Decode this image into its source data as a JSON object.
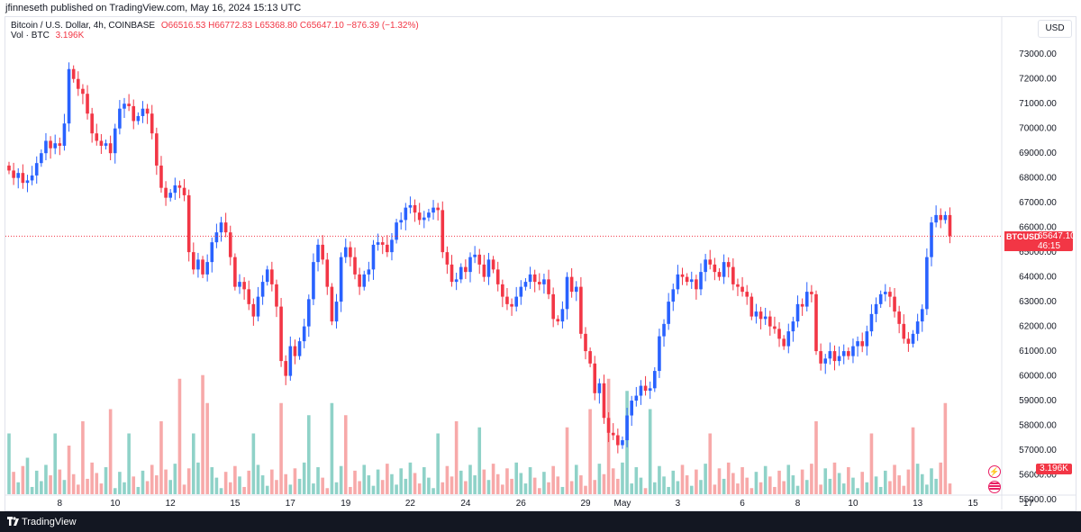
{
  "header": {
    "published": "jfinneseth published on TradingView.com, May 16, 2024 15:13 UTC"
  },
  "legend": {
    "symbol": "Bitcoin / U.S. Dollar, 4h, COINBASE",
    "open": "O66516.53",
    "high": "H66772.83",
    "low": "L65368.80",
    "close": "C65647.10",
    "change": "−876.39 (−1.32%)",
    "vol_label": "Vol · BTC",
    "vol_value": "3.196K"
  },
  "currency": "USD",
  "last_price": {
    "symbol": "BTCUSD",
    "price": "65647.10",
    "countdown": "46:15"
  },
  "volume_tag": "3.196K",
  "footer": {
    "brand": "TradingView"
  },
  "colors": {
    "up": "#2962ff",
    "down": "#f23645",
    "vol_up": "#8fd2c8",
    "vol_down": "#f7a9a9"
  },
  "chart_data": {
    "type": "candlestick",
    "interval": "4h",
    "y_ticks": [
      55000,
      56000,
      57000,
      58000,
      59000,
      60000,
      61000,
      62000,
      63000,
      64000,
      65000,
      66000,
      67000,
      68000,
      69000,
      70000,
      71000,
      72000,
      73000
    ],
    "y_range": [
      54600,
      74500
    ],
    "x_ticks": [
      {
        "label": "8",
        "i": 11
      },
      {
        "label": "10",
        "i": 23
      },
      {
        "label": "12",
        "i": 35
      },
      {
        "label": "15",
        "i": 49
      },
      {
        "label": "17",
        "i": 61
      },
      {
        "label": "19",
        "i": 73
      },
      {
        "label": "22",
        "i": 87
      },
      {
        "label": "24",
        "i": 99
      },
      {
        "label": "26",
        "i": 111
      },
      {
        "label": "29",
        "i": 125
      },
      {
        "label": "May",
        "i": 133
      },
      {
        "label": "3",
        "i": 145
      },
      {
        "label": "6",
        "i": 159
      },
      {
        "label": "8",
        "i": 171
      },
      {
        "label": "10",
        "i": 183
      },
      {
        "label": "13",
        "i": 197
      },
      {
        "label": "15",
        "i": 209
      },
      {
        "label": "17",
        "i": 221
      }
    ],
    "last_price": 65647.1,
    "closes": [
      68300,
      68000,
      68200,
      67800,
      67900,
      68100,
      68600,
      69000,
      69500,
      69200,
      69400,
      69300,
      70200,
      72400,
      72000,
      71600,
      71400,
      70600,
      69800,
      69500,
      69300,
      69400,
      69000,
      70000,
      70800,
      71000,
      70900,
      70300,
      70500,
      70800,
      70600,
      69800,
      68500,
      67600,
      67200,
      67400,
      67700,
      67600,
      67300,
      65000,
      64300,
      64700,
      64100,
      64600,
      65400,
      65800,
      66200,
      65800,
      64800,
      63600,
      63800,
      63500,
      62900,
      62400,
      63200,
      63800,
      64300,
      63700,
      62800,
      60600,
      60000,
      61200,
      60800,
      61400,
      62000,
      63100,
      64600,
      65300,
      64700,
      63600,
      62200,
      63000,
      64800,
      65200,
      64800,
      64100,
      63600,
      64100,
      64300,
      65300,
      65400,
      65300,
      65000,
      65500,
      66200,
      66300,
      66800,
      66900,
      66600,
      66300,
      66400,
      66600,
      66800,
      66700,
      65000,
      64500,
      63800,
      63900,
      64400,
      64200,
      64800,
      64900,
      64500,
      64000,
      64700,
      64300,
      63700,
      63200,
      62900,
      62800,
      63200,
      63600,
      63800,
      64100,
      63800,
      63700,
      63900,
      63300,
      62300,
      62200,
      62700,
      64000,
      63400,
      63600,
      61700,
      61000,
      60500,
      59300,
      59700,
      58300,
      57700,
      57600,
      57200,
      57400,
      58400,
      59000,
      59200,
      59600,
      59400,
      59500,
      60200,
      61600,
      62100,
      63000,
      63500,
      64100,
      64000,
      63800,
      63900,
      63500,
      64200,
      64700,
      64500,
      64200,
      64000,
      64600,
      64400,
      63700,
      63600,
      63400,
      63200,
      62400,
      62600,
      62300,
      62400,
      62000,
      61900,
      61500,
      61200,
      61800,
      62200,
      62900,
      62800,
      63400,
      63300,
      61000,
      60500,
      60700,
      61000,
      60600,
      60800,
      61000,
      60800,
      61200,
      61400,
      61200,
      61800,
      62500,
      62900,
      63300,
      63400,
      63200,
      62600,
      62100,
      61500,
      61300,
      61700,
      62200,
      62700,
      64800,
      66200,
      66500,
      66300,
      66500,
      65647.1
    ],
    "volume": [
      {
        "i": 0,
        "v": 0.5,
        "up": true
      },
      {
        "i": 4,
        "v": 0.3,
        "up": true
      },
      {
        "i": 10,
        "v": 0.5,
        "up": true
      },
      {
        "i": 13,
        "v": 0.4,
        "up": false
      },
      {
        "i": 16,
        "v": 0.6,
        "up": false
      },
      {
        "i": 22,
        "v": 0.7,
        "up": false
      },
      {
        "i": 26,
        "v": 0.5,
        "up": true
      },
      {
        "i": 33,
        "v": 0.6,
        "up": false
      },
      {
        "i": 37,
        "v": 0.95,
        "up": false
      },
      {
        "i": 40,
        "v": 0.5,
        "up": true
      },
      {
        "i": 42,
        "v": 0.98,
        "up": false
      },
      {
        "i": 43,
        "v": 0.75,
        "up": false
      },
      {
        "i": 53,
        "v": 0.5,
        "up": true
      },
      {
        "i": 59,
        "v": 0.75,
        "up": false
      },
      {
        "i": 65,
        "v": 0.65,
        "up": true
      },
      {
        "i": 70,
        "v": 0.75,
        "up": true
      },
      {
        "i": 73,
        "v": 0.65,
        "up": false
      },
      {
        "i": 93,
        "v": 0.5,
        "up": true
      },
      {
        "i": 97,
        "v": 0.6,
        "up": false
      },
      {
        "i": 102,
        "v": 0.55,
        "up": true
      },
      {
        "i": 121,
        "v": 0.55,
        "up": false
      },
      {
        "i": 126,
        "v": 0.7,
        "up": false
      },
      {
        "i": 130,
        "v": 0.95,
        "up": false
      },
      {
        "i": 134,
        "v": 0.85,
        "up": true
      },
      {
        "i": 139,
        "v": 0.7,
        "up": true
      },
      {
        "i": 152,
        "v": 0.5,
        "up": false
      },
      {
        "i": 175,
        "v": 0.6,
        "up": false
      },
      {
        "i": 187,
        "v": 0.5,
        "up": false
      },
      {
        "i": 196,
        "v": 0.55,
        "up": false
      },
      {
        "i": 203,
        "v": 0.75,
        "up": false
      },
      {
        "i": 207,
        "v": 0.85,
        "up": true
      },
      {
        "i": 209,
        "v": 0.9,
        "up": true
      }
    ]
  }
}
